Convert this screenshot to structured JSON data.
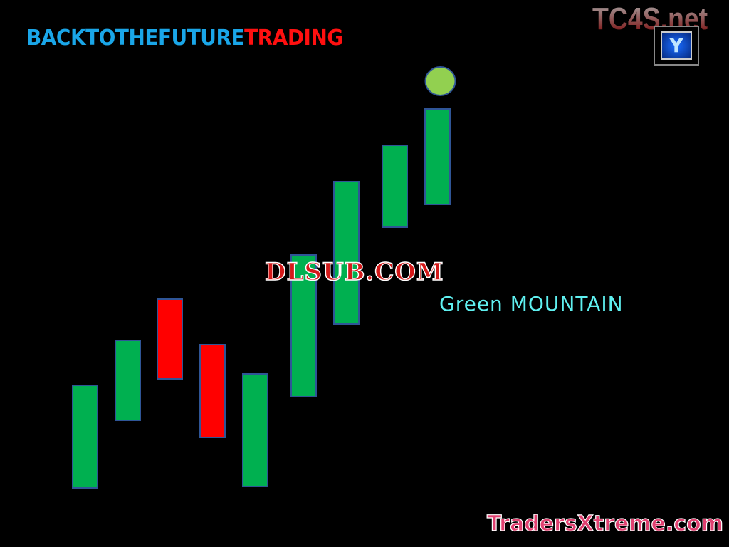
{
  "header": {
    "title_part1": "BACKTOTHEFUTURE",
    "title_part2": "TRADING",
    "title_colors": [
      "#1aa6e8",
      "#ff1010"
    ]
  },
  "watermarks": {
    "top_right": "TC4S.net",
    "badge_glyph": "Y",
    "center": "DLSUB.COM",
    "bottom_right": "TradersXtreme.com"
  },
  "annotation": {
    "word1": "Green",
    "word2": "MOUNTAIN",
    "color": "#5ff0f0"
  },
  "chart_data": {
    "type": "bar",
    "subtype": "candlestick-bodies",
    "axes_visible": false,
    "grid": false,
    "ylim": [
      0,
      768
    ],
    "bars": [
      {
        "low": 83,
        "high": 227,
        "color": "green"
      },
      {
        "low": 178,
        "high": 290,
        "color": "green"
      },
      {
        "low": 236,
        "high": 348,
        "color": "red"
      },
      {
        "low": 154,
        "high": 284,
        "color": "red"
      },
      {
        "low": 85,
        "high": 243,
        "color": "green"
      },
      {
        "low": 211,
        "high": 410,
        "color": "green"
      },
      {
        "low": 313,
        "high": 513,
        "color": "green"
      },
      {
        "low": 449,
        "high": 564,
        "color": "green"
      },
      {
        "low": 481,
        "high": 615,
        "color": "green"
      }
    ],
    "marker": {
      "bar_index": 8,
      "level": 654,
      "color": "#92d050",
      "shape": "circle"
    },
    "colors": {
      "green": "#00b050",
      "red": "#ff0000",
      "outline": "#2f5597"
    }
  }
}
